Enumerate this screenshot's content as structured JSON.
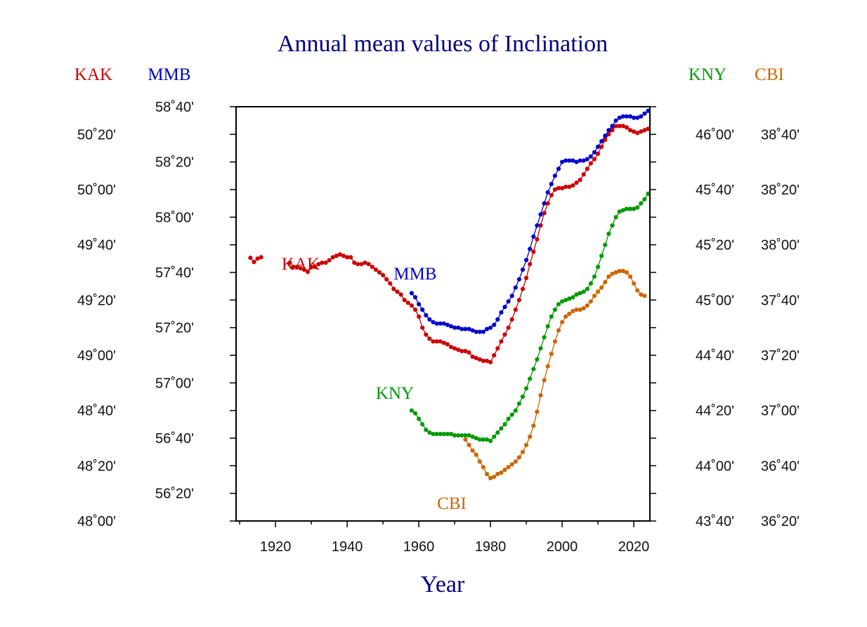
{
  "chart_data": {
    "type": "line",
    "title": "Annual mean values of Inclination",
    "xlabel": "Year",
    "xlim": [
      1909,
      2024.5
    ],
    "x_ticks": [
      1920,
      1940,
      1960,
      1980,
      2000,
      2020
    ],
    "y_axes": [
      {
        "station": "KAK",
        "side": "left",
        "ylim_deg": [
          48.0,
          50.5
        ],
        "tick_labels": [
          "48˚00'",
          "48˚20'",
          "48˚40'",
          "49˚00'",
          "49˚20'",
          "49˚40'",
          "50˚00'",
          "50˚20'"
        ],
        "tick_values": [
          48.0,
          48.3333,
          48.6667,
          49.0,
          49.3333,
          49.6667,
          50.0,
          50.3333
        ]
      },
      {
        "station": "MMB",
        "side": "left",
        "ylim_deg": [
          56.1667,
          58.6667
        ],
        "tick_labels": [
          "56˚20'",
          "56˚40'",
          "57˚00'",
          "57˚20'",
          "57˚40'",
          "58˚00'",
          "58˚20'",
          "58˚40'"
        ],
        "tick_values": [
          56.3333,
          56.6667,
          57.0,
          57.3333,
          57.6667,
          58.0,
          58.3333,
          58.6667
        ]
      },
      {
        "station": "KNY",
        "side": "right",
        "ylim_deg": [
          43.6667,
          46.1667
        ],
        "tick_labels": [
          "43˚40'",
          "44˚00'",
          "44˚20'",
          "44˚40'",
          "45˚00'",
          "45˚20'",
          "45˚40'",
          "46˚00'"
        ],
        "tick_values": [
          43.6667,
          44.0,
          44.3333,
          44.6667,
          45.0,
          45.3333,
          45.6667,
          46.0
        ]
      },
      {
        "station": "CBI",
        "side": "right",
        "ylim_deg": [
          36.3333,
          38.8333
        ],
        "tick_labels": [
          "36˚20'",
          "36˚40'",
          "37˚00'",
          "37˚20'",
          "37˚40'",
          "38˚00'",
          "38˚20'",
          "38˚40'"
        ],
        "tick_values": [
          36.3333,
          36.6667,
          37.0,
          37.3333,
          37.6667,
          38.0,
          38.3333,
          38.6667
        ]
      }
    ],
    "series": [
      {
        "name": "KAK",
        "axis": 0,
        "color": "#cc0000",
        "segments": [
          {
            "x": [
              1913,
              1914,
              1915,
              1916
            ],
            "y": [
              49.5883,
              49.5633,
              49.5833,
              49.5917
            ]
          },
          {
            "x": [
              1924,
              1925,
              1926,
              1927,
              1928,
              1929,
              1930,
              1931,
              1932,
              1933,
              1934,
              1935,
              1936,
              1937,
              1938,
              1939,
              1940,
              1941,
              1942,
              1943,
              1944,
              1945,
              1946,
              1947,
              1948,
              1949,
              1950,
              1951,
              1952,
              1953,
              1954,
              1955,
              1956,
              1957,
              1958,
              1959,
              1960,
              1961,
              1962,
              1963,
              1964,
              1965,
              1966,
              1967,
              1968,
              1969,
              1970,
              1971,
              1972,
              1973,
              1974,
              1975,
              1976,
              1977,
              1978,
              1979,
              1980,
              1981,
              1982,
              1983,
              1984,
              1985,
              1986,
              1987,
              1988,
              1989,
              1990,
              1991,
              1992,
              1993,
              1994,
              1995,
              1996,
              1997,
              1998,
              1999,
              2000,
              2001,
              2002,
              2003,
              2004,
              2005,
              2006,
              2007,
              2008,
              2009,
              2010,
              2011,
              2012,
              2013,
              2014,
              2015,
              2016,
              2017,
              2018,
              2019,
              2020,
              2021,
              2022,
              2023,
              2024
            ],
            "y": [
              49.5583,
              49.5333,
              49.5333,
              49.525,
              49.5167,
              49.5033,
              49.5333,
              49.5333,
              49.55,
              49.5583,
              49.5583,
              49.5733,
              49.5917,
              49.6,
              49.6083,
              49.6,
              49.5917,
              49.5917,
              49.5583,
              49.55,
              49.55,
              49.5583,
              49.55,
              49.5333,
              49.5167,
              49.5,
              49.4833,
              49.4583,
              49.4333,
              49.4,
              49.3833,
              49.3667,
              49.3333,
              49.3167,
              49.3,
              49.275,
              49.2333,
              49.1667,
              49.125,
              49.1,
              49.0833,
              49.0833,
              49.0833,
              49.075,
              49.0667,
              49.05,
              49.0417,
              49.0333,
              49.025,
              49.025,
              49.0167,
              48.9917,
              48.9833,
              48.975,
              48.9667,
              48.9667,
              48.9583,
              49.0,
              49.0417,
              49.0833,
              49.125,
              49.1667,
              49.2167,
              49.275,
              49.3333,
              49.4,
              49.4667,
              49.55,
              49.625,
              49.7,
              49.7833,
              49.8583,
              49.9167,
              49.9667,
              50.0,
              50.0083,
              50.0083,
              50.0167,
              50.0167,
              50.025,
              50.0417,
              50.0583,
              50.0917,
              50.125,
              50.1583,
              50.1833,
              50.2167,
              50.2583,
              50.3,
              50.3333,
              50.3583,
              50.3833,
              50.3833,
              50.3833,
              50.375,
              50.3583,
              50.35,
              50.3417,
              50.35,
              50.3583,
              50.3667
            ]
          }
        ]
      },
      {
        "name": "MMB",
        "axis": 1,
        "color": "#0000cc",
        "segments": [
          {
            "x": [
              1958,
              1959,
              1960,
              1961,
              1962,
              1963,
              1964,
              1965,
              1966,
              1967,
              1968,
              1969,
              1970,
              1971,
              1972,
              1973,
              1974,
              1975,
              1976,
              1977,
              1978,
              1979,
              1980,
              1981,
              1982,
              1983,
              1984,
              1985,
              1986,
              1987,
              1988,
              1989,
              1990,
              1991,
              1992,
              1993,
              1994,
              1995,
              1996,
              1997,
              1998,
              1999,
              2000,
              2001,
              2002,
              2003,
              2004,
              2005,
              2006,
              2007,
              2008,
              2009,
              2010,
              2011,
              2012,
              2013,
              2014,
              2015,
              2016,
              2017,
              2018,
              2019,
              2020,
              2021,
              2022,
              2023,
              2024
            ],
            "y": [
              57.5417,
              57.5167,
              57.475,
              57.4417,
              57.4083,
              57.3833,
              57.3667,
              57.3583,
              57.3583,
              57.3583,
              57.35,
              57.3417,
              57.3333,
              57.3333,
              57.325,
              57.325,
              57.325,
              57.3167,
              57.3083,
              57.3083,
              57.3083,
              57.325,
              57.3333,
              57.35,
              57.3833,
              57.425,
              57.4583,
              57.4917,
              57.525,
              57.575,
              57.625,
              57.6833,
              57.7417,
              57.8083,
              57.8833,
              57.95,
              58.0167,
              58.0833,
              58.15,
              58.2,
              58.25,
              58.2917,
              58.3333,
              58.3417,
              58.3417,
              58.3417,
              58.3333,
              58.3417,
              58.3417,
              58.35,
              58.3667,
              58.3917,
              58.425,
              58.4583,
              58.4917,
              58.525,
              58.55,
              58.5833,
              58.6,
              58.6083,
              58.6083,
              58.6083,
              58.6,
              58.6,
              58.6083,
              58.625,
              58.6417
            ]
          }
        ]
      },
      {
        "name": "KNY",
        "axis": 2,
        "color": "#009900",
        "segments": [
          {
            "x": [
              1958,
              1959,
              1960,
              1961,
              1962,
              1963,
              1964,
              1965,
              1966,
              1967,
              1968,
              1969,
              1970,
              1971,
              1972,
              1973,
              1974,
              1975,
              1976,
              1977,
              1978,
              1979,
              1980,
              1981,
              1982,
              1983,
              1984,
              1985,
              1986,
              1987,
              1988,
              1989,
              1990,
              1991,
              1992,
              1993,
              1994,
              1995,
              1996,
              1997,
              1998,
              1999,
              2000,
              2001,
              2002,
              2003,
              2004,
              2005,
              2006,
              2007,
              2008,
              2009,
              2010,
              2011,
              2012,
              2013,
              2014,
              2015,
              2016,
              2017,
              2018,
              2019,
              2020,
              2021,
              2022,
              2023,
              2024
            ],
            "y": [
              44.3333,
              44.3167,
              44.2833,
              44.25,
              44.2167,
              44.2,
              44.1917,
              44.1917,
              44.1917,
              44.1917,
              44.1917,
              44.1917,
              44.1833,
              44.1833,
              44.1833,
              44.1833,
              44.1833,
              44.175,
              44.1667,
              44.1583,
              44.1583,
              44.1583,
              44.15,
              44.175,
              44.2,
              44.225,
              44.25,
              44.2833,
              44.3083,
              44.3333,
              44.375,
              44.4167,
              44.4667,
              44.525,
              44.5833,
              44.6417,
              44.7083,
              44.775,
              44.8417,
              44.9,
              44.9417,
              44.975,
              44.9917,
              45.0,
              45.0083,
              45.0167,
              45.0333,
              45.0417,
              45.05,
              45.0667,
              45.1,
              45.1417,
              45.2,
              45.2667,
              45.3333,
              45.4,
              45.45,
              45.5,
              45.5333,
              45.5417,
              45.55,
              45.55,
              45.55,
              45.5583,
              45.5833,
              45.6083,
              45.6417
            ]
          }
        ]
      },
      {
        "name": "CBI",
        "axis": 3,
        "color": "#cc6600",
        "segments": [
          {
            "x": [
              1973,
              1974,
              1975,
              1976,
              1977,
              1978,
              1979,
              1980,
              1981,
              1982,
              1983,
              1984,
              1985,
              1986,
              1987,
              1988,
              1989,
              1990,
              1991,
              1992,
              1993,
              1994,
              1995,
              1996,
              1997,
              1998,
              1999,
              2000,
              2001,
              2002,
              2003,
              2004,
              2005,
              2006,
              2007,
              2008,
              2009,
              2010,
              2011,
              2012,
              2013,
              2014,
              2015,
              2016,
              2017,
              2018,
              2019,
              2020,
              2021,
              2022,
              2023
            ],
            "y": [
              36.825,
              36.7917,
              36.7583,
              36.7333,
              36.6917,
              36.6583,
              36.6167,
              36.5917,
              36.6,
              36.6167,
              36.625,
              36.6417,
              36.6583,
              36.675,
              36.6917,
              36.7167,
              36.75,
              36.7917,
              36.8417,
              36.9083,
              36.9917,
              37.0917,
              37.1833,
              37.2667,
              37.3417,
              37.4167,
              37.4833,
              37.5333,
              37.5667,
              37.5833,
              37.6,
              37.6083,
              37.6083,
              37.6167,
              37.6333,
              37.6583,
              37.6917,
              37.7167,
              37.7417,
              37.775,
              37.8083,
              37.825,
              37.8333,
              37.8417,
              37.8417,
              37.8333,
              37.8083,
              37.7667,
              37.725,
              37.7,
              37.6917
            ]
          }
        ]
      }
    ]
  },
  "labels": {
    "axis_heads": [
      "KAK",
      "MMB",
      "KNY",
      "CBI"
    ],
    "series_in_plot": [
      "KAK",
      "MMB",
      "KNY",
      "CBI"
    ]
  },
  "colors": {
    "title": "#00007f",
    "kak": "#cc0000",
    "mmb": "#0000cc",
    "kny": "#009900",
    "cbi": "#cc6600",
    "axis": "#000000"
  }
}
